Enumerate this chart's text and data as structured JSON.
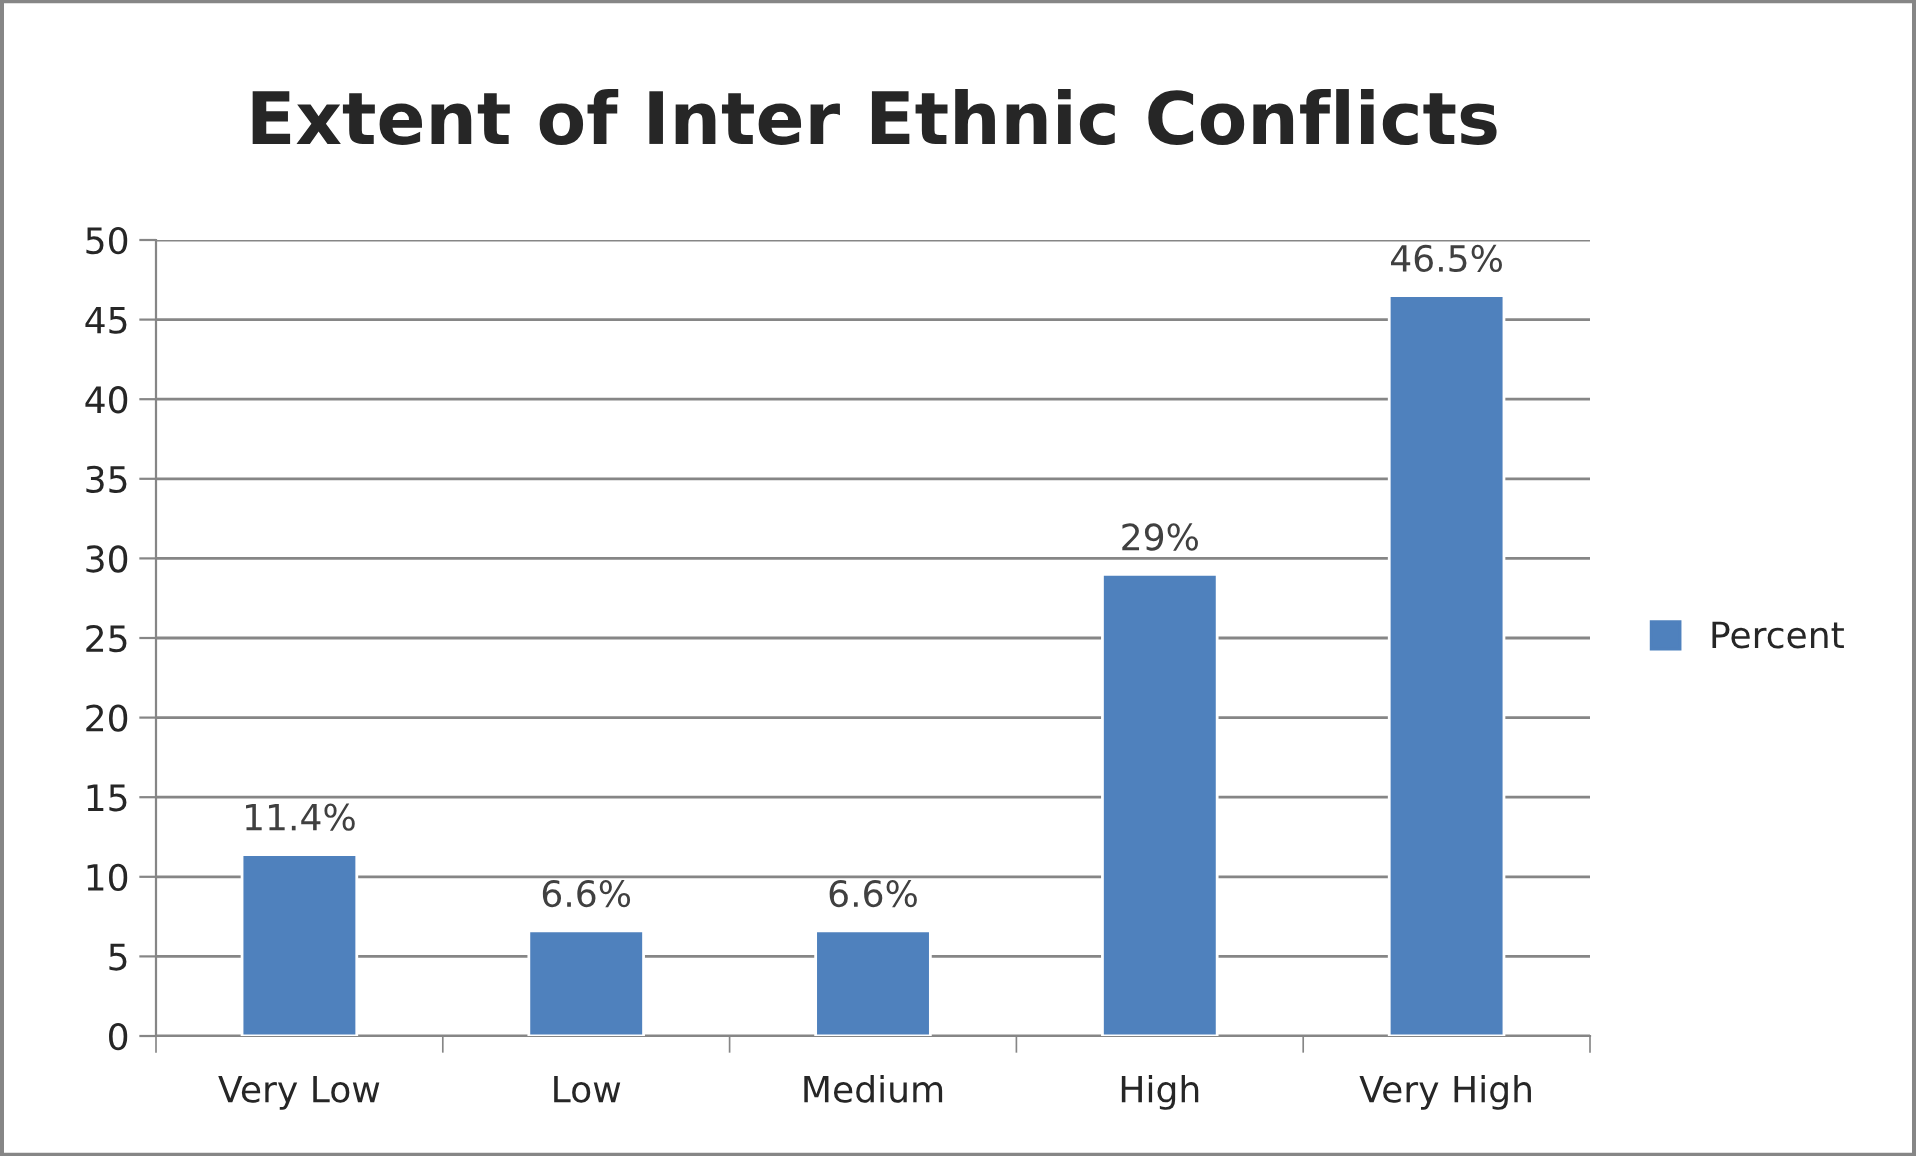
{
  "chart_data": {
    "type": "bar",
    "title": "Extent of Inter Ethnic Conflicts",
    "categories": [
      "Very Low",
      "Low",
      "Medium",
      "High",
      "Very High"
    ],
    "series": [
      {
        "name": "Percent",
        "color": "#4f81bd",
        "values": [
          11.4,
          6.6,
          6.6,
          29,
          46.5
        ],
        "value_labels": [
          "11.4%",
          "6.6%",
          "6.6%",
          "29%",
          "46.5%"
        ]
      }
    ],
    "ylim": [
      0,
      50
    ],
    "yticks": [
      0,
      5,
      10,
      15,
      20,
      25,
      30,
      35,
      40,
      45,
      50
    ],
    "grid": "y",
    "legend": "right"
  }
}
